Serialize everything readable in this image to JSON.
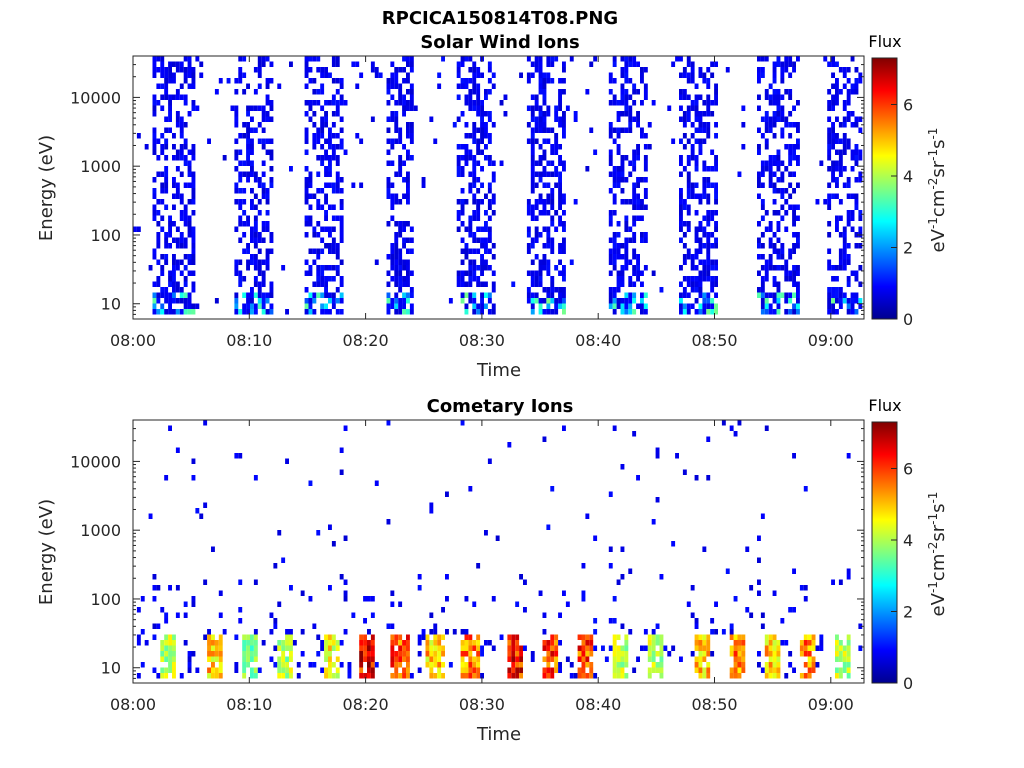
{
  "figure_title": "RPCICA150814T08.PNG",
  "chart_data": [
    {
      "type": "heatmap",
      "title": "Solar Wind Ions",
      "xlabel": "Time",
      "ylabel": "Energy (eV)",
      "x_tick_labels": [
        "08:00",
        "08:10",
        "08:20",
        "08:30",
        "08:40",
        "08:50",
        "09:00"
      ],
      "x_range": [
        "08:00",
        "09:03"
      ],
      "y_scale": "log",
      "y_tick_values": [
        10,
        100,
        1000,
        10000
      ],
      "y_tick_labels": [
        "10",
        "100",
        "1000",
        "10000"
      ],
      "y_range": [
        6,
        40000
      ],
      "colorbar": {
        "title": "Flux",
        "label": "eV-1cm-2sr-1s-1",
        "range": [
          0,
          7.3
        ],
        "tick_labels": [
          "0",
          "2",
          "4",
          "6"
        ],
        "colormap": "jet"
      },
      "bursts": [
        {
          "start": "08:02",
          "end": "08:05"
        },
        {
          "start": "08:09",
          "end": "08:12"
        },
        {
          "start": "08:15",
          "end": "08:18"
        },
        {
          "start": "08:22",
          "end": "08:24"
        },
        {
          "start": "08:28",
          "end": "08:31"
        },
        {
          "start": "08:34",
          "end": "08:37"
        },
        {
          "start": "08:41",
          "end": "08:44"
        },
        {
          "start": "08:47",
          "end": "08:50"
        },
        {
          "start": "08:54",
          "end": "08:57"
        },
        {
          "start": "09:00",
          "end": "09:03"
        }
      ]
    },
    {
      "type": "heatmap",
      "title": "Cometary Ions",
      "xlabel": "Time",
      "ylabel": "Energy (eV)",
      "x_tick_labels": [
        "08:00",
        "08:10",
        "08:20",
        "08:30",
        "08:40",
        "08:50",
        "09:00"
      ],
      "x_range": [
        "08:00",
        "09:03"
      ],
      "y_scale": "log",
      "y_tick_values": [
        10,
        100,
        1000,
        10000
      ],
      "y_tick_labels": [
        "10",
        "100",
        "1000",
        "10000"
      ],
      "y_range": [
        6,
        40000
      ],
      "colorbar": {
        "title": "Flux",
        "label": "eV-1cm-2sr-1s-1",
        "range": [
          0,
          7.3
        ],
        "tick_labels": [
          "0",
          "2",
          "4",
          "6"
        ],
        "colormap": "jet"
      },
      "hotspots": [
        {
          "time": "08:03",
          "flux": 4.5
        },
        {
          "time": "08:07",
          "flux": 5.5
        },
        {
          "time": "08:10",
          "flux": 4.0
        },
        {
          "time": "08:13",
          "flux": 4.5
        },
        {
          "time": "08:17",
          "flux": 5.0
        },
        {
          "time": "08:20",
          "flux": 7.0
        },
        {
          "time": "08:23",
          "flux": 6.5
        },
        {
          "time": "08:26",
          "flux": 5.5
        },
        {
          "time": "08:29",
          "flux": 6.0
        },
        {
          "time": "08:33",
          "flux": 7.0
        },
        {
          "time": "08:36",
          "flux": 6.5
        },
        {
          "time": "08:39",
          "flux": 6.5
        },
        {
          "time": "08:42",
          "flux": 4.5
        },
        {
          "time": "08:45",
          "flux": 4.5
        },
        {
          "time": "08:49",
          "flux": 5.5
        },
        {
          "time": "08:52",
          "flux": 6.0
        },
        {
          "time": "08:55",
          "flux": 5.5
        },
        {
          "time": "08:58",
          "flux": 6.0
        },
        {
          "time": "09:01",
          "flux": 4.5
        }
      ]
    }
  ]
}
